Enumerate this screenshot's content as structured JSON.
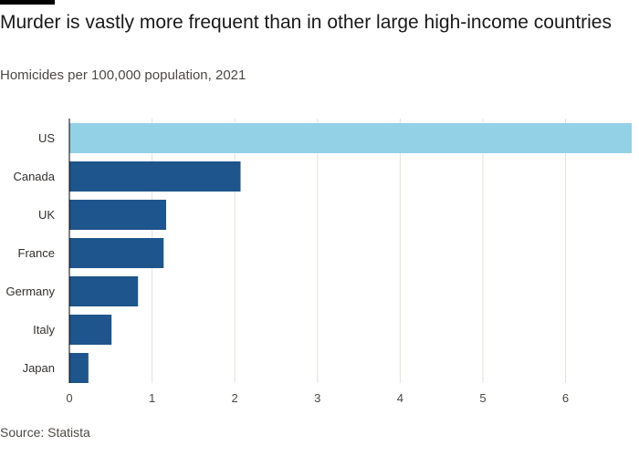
{
  "header": {
    "title": "Murder is vastly more frequent than in other large high-income countries",
    "subtitle": "Homicides per 100,000 population, 2021"
  },
  "footer": {
    "source": "Source: Statista"
  },
  "colors": {
    "highlight": "#93d1e6",
    "bar": "#1e558c",
    "grid": "#e6e1dc",
    "axis": "#000000"
  },
  "chart_data": {
    "type": "bar",
    "orientation": "horizontal",
    "categories": [
      "US",
      "Canada",
      "UK",
      "France",
      "Germany",
      "Italy",
      "Japan"
    ],
    "values": [
      6.8,
      2.07,
      1.17,
      1.14,
      0.83,
      0.51,
      0.23
    ],
    "highlighted": [
      "US"
    ],
    "xlim": [
      0,
      6.8
    ],
    "xticks": [
      0,
      1,
      2,
      3,
      4,
      5,
      6
    ],
    "grid": true,
    "xlabel": "",
    "ylabel": ""
  }
}
